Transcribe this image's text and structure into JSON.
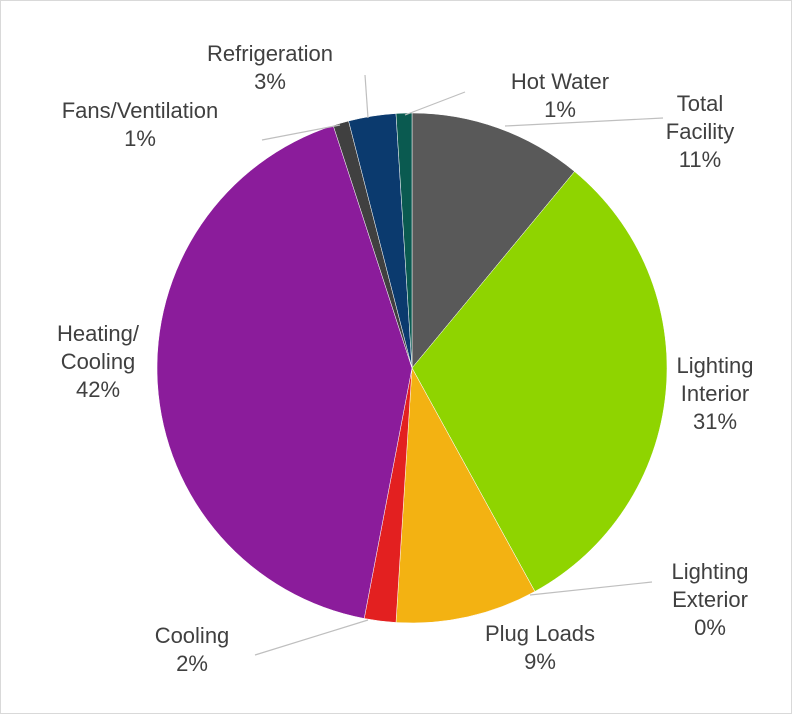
{
  "chart_data": {
    "type": "pie",
    "categories": [
      "Total Facility",
      "Lighting Interior",
      "Lighting Exterior",
      "Plug Loads",
      "Cooling",
      "Heating/Cooling",
      "Fans/Ventilation",
      "Refrigeration",
      "Hot Water"
    ],
    "values": [
      11,
      31,
      0,
      9,
      2,
      42,
      1,
      3,
      1
    ],
    "value_labels": [
      "11%",
      "31%",
      "0%",
      "9%",
      "2%",
      "42%",
      "1%",
      "3%",
      "1%"
    ],
    "colors": [
      "#595959",
      "#8fd400",
      "#2a7fa0",
      "#f3b212",
      "#e32020",
      "#8b1c9b",
      "#404040",
      "#0b3a6e",
      "#0a5a50"
    ]
  }
}
